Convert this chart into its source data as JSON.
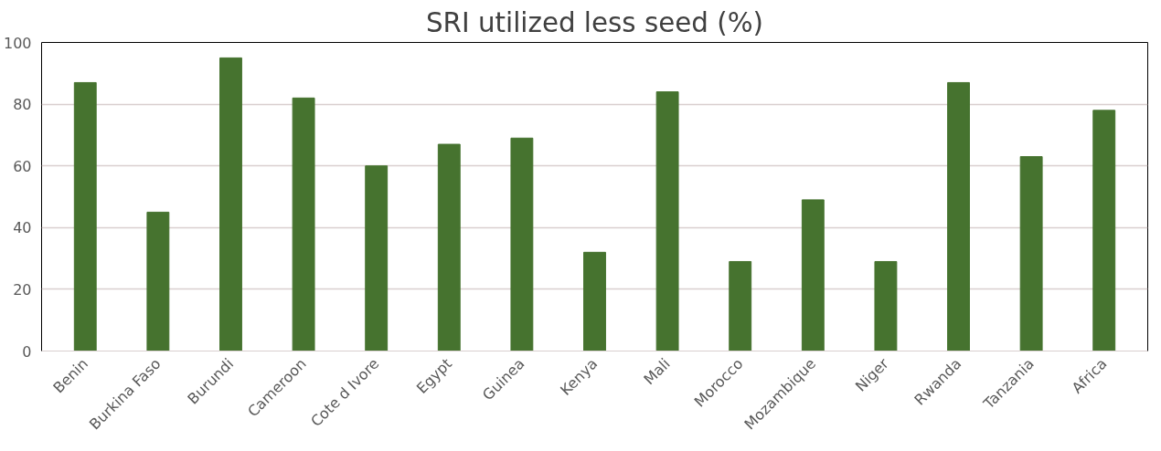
{
  "chart_data": {
    "type": "bar",
    "title": "SRI utilized less seed (%)",
    "categories": [
      "Benin",
      "Burkina Faso",
      "Burundi",
      "Cameroon",
      "Cote d Ivore",
      "Egypt",
      "Guinea",
      "Kenya",
      "Mali",
      "Morocco",
      "Mozambique",
      "Niger",
      "Rwanda",
      "Tanzania",
      "Africa"
    ],
    "values": [
      87,
      45,
      95,
      82,
      60,
      67,
      69,
      32,
      84,
      29,
      49,
      29,
      87,
      63,
      78
    ],
    "color": "#46732f",
    "ylim": [
      0,
      100
    ],
    "yticks": [
      0,
      20,
      40,
      60,
      80,
      100
    ],
    "grid": "y"
  }
}
